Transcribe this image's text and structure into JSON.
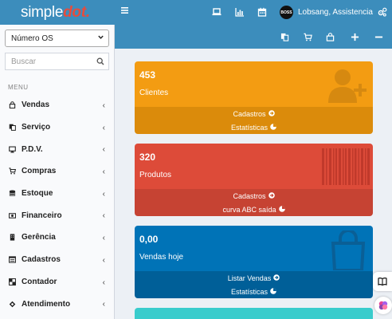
{
  "header": {
    "logo_main": "simple",
    "logo_accent": "dot.",
    "menu_icon": "hamburger-icon",
    "icons": [
      "laptop-icon",
      "bar-chart-icon",
      "calendar-icon"
    ],
    "user": {
      "avatar_text": "BOSS",
      "name": "Lobsang, Assistencia"
    },
    "settings_icon": "cogs-icon"
  },
  "sidebar": {
    "select_value": "Número OS",
    "search_placeholder": "Buscar",
    "menu_header": "MENU",
    "items": [
      {
        "label": "Vendas",
        "icon": "lock-bag-icon"
      },
      {
        "label": "Serviço",
        "icon": "copy-icon"
      },
      {
        "label": "P.D.V.",
        "icon": "desktop-icon"
      },
      {
        "label": "Compras",
        "icon": "cart-icon"
      },
      {
        "label": "Estoque",
        "icon": "database-icon"
      },
      {
        "label": "Financeiro",
        "icon": "money-icon"
      },
      {
        "label": "Gerência",
        "icon": "building-icon"
      },
      {
        "label": "Cadastros",
        "icon": "list-icon"
      },
      {
        "label": "Contador",
        "icon": "chess-icon"
      },
      {
        "label": "Atendimento",
        "icon": "diamond-icon"
      }
    ],
    "chevron": "‹"
  },
  "toolbar2": {
    "icons": [
      "copy-icon",
      "cart-icon",
      "bag-icon",
      "plus-icon",
      "minus-icon"
    ]
  },
  "boxes": [
    {
      "number": "453",
      "label": "Clientes",
      "links": [
        {
          "text": "Cadastros",
          "icon": "arrow-circle-right-icon"
        },
        {
          "text": "Estatísticas",
          "icon": "pie-chart-icon"
        }
      ],
      "color": "#f39c12"
    },
    {
      "number": "320",
      "label": "Produtos",
      "links": [
        {
          "text": "Cadastros",
          "icon": "arrow-circle-right-icon"
        },
        {
          "text": "curva ABC saída",
          "icon": "pie-chart-icon"
        }
      ],
      "color": "#dd4b39"
    },
    {
      "number": "0,00",
      "label": "Vendas hoje",
      "links": [
        {
          "text": "Listar Vendas",
          "icon": "arrow-circle-right-icon"
        },
        {
          "text": "Estatísticas",
          "icon": "pie-chart-icon"
        }
      ],
      "color": "#0073b7"
    }
  ],
  "colors": {
    "primary": "#3c8dbc",
    "orange": "#f39c12",
    "red": "#dd4b39",
    "blue": "#0073b7",
    "teal": "#39cccc"
  }
}
